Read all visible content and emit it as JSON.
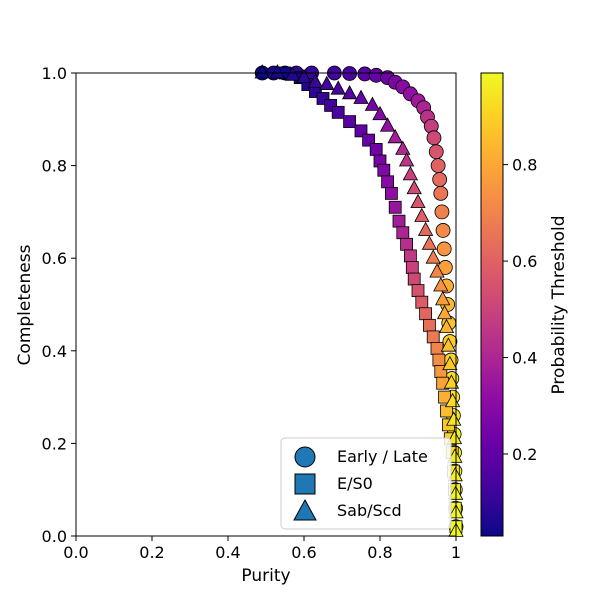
{
  "chart_data": {
    "type": "scatter",
    "title": "",
    "xlabel": "Purity",
    "ylabel": "Completeness",
    "xlim": [
      0,
      1
    ],
    "ylim": [
      0,
      1
    ],
    "xticks": [
      0.0,
      0.2,
      0.4,
      0.6,
      0.8,
      1.0
    ],
    "yticks": [
      0.0,
      0.2,
      0.4,
      0.6,
      0.8,
      1.0
    ],
    "xtick_labels": [
      "0.0",
      "0.2",
      "0.4",
      "0.6",
      "0.8",
      "1"
    ],
    "ytick_labels": [
      "0.0",
      "0.2",
      "0.4",
      "0.6",
      "0.8",
      "1.0"
    ],
    "grid": false,
    "legend_position": "lower-right",
    "colorbar": {
      "label": "Probability Threshold",
      "colormap": "plasma",
      "range": [
        0.03,
        0.99
      ],
      "ticks": [
        0.2,
        0.4,
        0.6,
        0.8
      ],
      "tick_labels": [
        "0.2",
        "0.4",
        "0.6",
        "0.8"
      ]
    },
    "series": [
      {
        "name": "Early / Late",
        "marker": "circle",
        "points": [
          {
            "purity": 0.49,
            "completeness": 1.0,
            "threshold": 0.03
          },
          {
            "purity": 0.52,
            "completeness": 1.0,
            "threshold": 0.05
          },
          {
            "purity": 0.55,
            "completeness": 1.0,
            "threshold": 0.07
          },
          {
            "purity": 0.58,
            "completeness": 1.0,
            "threshold": 0.09
          },
          {
            "purity": 0.62,
            "completeness": 1.0,
            "threshold": 0.11
          },
          {
            "purity": 0.68,
            "completeness": 1.0,
            "threshold": 0.13
          },
          {
            "purity": 0.72,
            "completeness": 0.999,
            "threshold": 0.15
          },
          {
            "purity": 0.76,
            "completeness": 0.998,
            "threshold": 0.18
          },
          {
            "purity": 0.79,
            "completeness": 0.995,
            "threshold": 0.21
          },
          {
            "purity": 0.82,
            "completeness": 0.99,
            "threshold": 0.24
          },
          {
            "purity": 0.84,
            "completeness": 0.98,
            "threshold": 0.27
          },
          {
            "purity": 0.86,
            "completeness": 0.97,
            "threshold": 0.3
          },
          {
            "purity": 0.88,
            "completeness": 0.955,
            "threshold": 0.33
          },
          {
            "purity": 0.9,
            "completeness": 0.94,
            "threshold": 0.36
          },
          {
            "purity": 0.915,
            "completeness": 0.925,
            "threshold": 0.4
          },
          {
            "purity": 0.925,
            "completeness": 0.905,
            "threshold": 0.44
          },
          {
            "purity": 0.935,
            "completeness": 0.885,
            "threshold": 0.48
          },
          {
            "purity": 0.942,
            "completeness": 0.86,
            "threshold": 0.52
          },
          {
            "purity": 0.948,
            "completeness": 0.83,
            "threshold": 0.56
          },
          {
            "purity": 0.953,
            "completeness": 0.8,
            "threshold": 0.6
          },
          {
            "purity": 0.957,
            "completeness": 0.77,
            "threshold": 0.63
          },
          {
            "purity": 0.96,
            "completeness": 0.74,
            "threshold": 0.66
          },
          {
            "purity": 0.963,
            "completeness": 0.7,
            "threshold": 0.69
          },
          {
            "purity": 0.966,
            "completeness": 0.66,
            "threshold": 0.72
          },
          {
            "purity": 0.969,
            "completeness": 0.62,
            "threshold": 0.75
          },
          {
            "purity": 0.972,
            "completeness": 0.58,
            "threshold": 0.78
          },
          {
            "purity": 0.975,
            "completeness": 0.54,
            "threshold": 0.81
          },
          {
            "purity": 0.978,
            "completeness": 0.5,
            "threshold": 0.84
          },
          {
            "purity": 0.981,
            "completeness": 0.46,
            "threshold": 0.87
          },
          {
            "purity": 0.984,
            "completeness": 0.42,
            "threshold": 0.89
          },
          {
            "purity": 0.987,
            "completeness": 0.38,
            "threshold": 0.91
          },
          {
            "purity": 0.989,
            "completeness": 0.34,
            "threshold": 0.93
          },
          {
            "purity": 0.991,
            "completeness": 0.3,
            "threshold": 0.94
          },
          {
            "purity": 0.993,
            "completeness": 0.26,
            "threshold": 0.95
          },
          {
            "purity": 0.995,
            "completeness": 0.22,
            "threshold": 0.96
          },
          {
            "purity": 0.996,
            "completeness": 0.18,
            "threshold": 0.97
          },
          {
            "purity": 0.997,
            "completeness": 0.14,
            "threshold": 0.975
          },
          {
            "purity": 0.998,
            "completeness": 0.1,
            "threshold": 0.98
          },
          {
            "purity": 0.999,
            "completeness": 0.06,
            "threshold": 0.985
          },
          {
            "purity": 1.0,
            "completeness": 0.02,
            "threshold": 0.99
          }
        ]
      },
      {
        "name": "E/S0",
        "marker": "square",
        "points": [
          {
            "purity": 0.55,
            "completeness": 1.0,
            "threshold": 0.03
          },
          {
            "purity": 0.59,
            "completeness": 0.99,
            "threshold": 0.05
          },
          {
            "purity": 0.61,
            "completeness": 0.975,
            "threshold": 0.07
          },
          {
            "purity": 0.63,
            "completeness": 0.96,
            "threshold": 0.09
          },
          {
            "purity": 0.65,
            "completeness": 0.945,
            "threshold": 0.11
          },
          {
            "purity": 0.67,
            "completeness": 0.93,
            "threshold": 0.13
          },
          {
            "purity": 0.69,
            "completeness": 0.915,
            "threshold": 0.15
          },
          {
            "purity": 0.72,
            "completeness": 0.895,
            "threshold": 0.18
          },
          {
            "purity": 0.75,
            "completeness": 0.875,
            "threshold": 0.2
          },
          {
            "purity": 0.77,
            "completeness": 0.855,
            "threshold": 0.22
          },
          {
            "purity": 0.79,
            "completeness": 0.835,
            "threshold": 0.24
          },
          {
            "purity": 0.8,
            "completeness": 0.81,
            "threshold": 0.26
          },
          {
            "purity": 0.81,
            "completeness": 0.79,
            "threshold": 0.28
          },
          {
            "purity": 0.82,
            "completeness": 0.765,
            "threshold": 0.3
          },
          {
            "purity": 0.83,
            "completeness": 0.74,
            "threshold": 0.32
          },
          {
            "purity": 0.84,
            "completeness": 0.71,
            "threshold": 0.34
          },
          {
            "purity": 0.85,
            "completeness": 0.68,
            "threshold": 0.37
          },
          {
            "purity": 0.86,
            "completeness": 0.655,
            "threshold": 0.4
          },
          {
            "purity": 0.87,
            "completeness": 0.63,
            "threshold": 0.43
          },
          {
            "purity": 0.88,
            "completeness": 0.605,
            "threshold": 0.46
          },
          {
            "purity": 0.885,
            "completeness": 0.58,
            "threshold": 0.49
          },
          {
            "purity": 0.89,
            "completeness": 0.555,
            "threshold": 0.52
          },
          {
            "purity": 0.9,
            "completeness": 0.53,
            "threshold": 0.55
          },
          {
            "purity": 0.91,
            "completeness": 0.505,
            "threshold": 0.58
          },
          {
            "purity": 0.92,
            "completeness": 0.48,
            "threshold": 0.61
          },
          {
            "purity": 0.93,
            "completeness": 0.455,
            "threshold": 0.64
          },
          {
            "purity": 0.94,
            "completeness": 0.43,
            "threshold": 0.67
          },
          {
            "purity": 0.95,
            "completeness": 0.405,
            "threshold": 0.7
          },
          {
            "purity": 0.955,
            "completeness": 0.38,
            "threshold": 0.73
          },
          {
            "purity": 0.96,
            "completeness": 0.355,
            "threshold": 0.76
          },
          {
            "purity": 0.965,
            "completeness": 0.33,
            "threshold": 0.79
          },
          {
            "purity": 0.97,
            "completeness": 0.3,
            "threshold": 0.82
          },
          {
            "purity": 0.975,
            "completeness": 0.27,
            "threshold": 0.85
          },
          {
            "purity": 0.98,
            "completeness": 0.24,
            "threshold": 0.88
          },
          {
            "purity": 0.985,
            "completeness": 0.21,
            "threshold": 0.9
          },
          {
            "purity": 0.99,
            "completeness": 0.18,
            "threshold": 0.92
          },
          {
            "purity": 0.993,
            "completeness": 0.14,
            "threshold": 0.94
          },
          {
            "purity": 0.996,
            "completeness": 0.1,
            "threshold": 0.96
          },
          {
            "purity": 0.998,
            "completeness": 0.06,
            "threshold": 0.98
          },
          {
            "purity": 1.0,
            "completeness": 0.02,
            "threshold": 0.99
          }
        ]
      },
      {
        "name": "Sab/Scd",
        "marker": "triangle",
        "points": [
          {
            "purity": 0.49,
            "completeness": 1.0,
            "threshold": 0.03
          },
          {
            "purity": 0.53,
            "completeness": 1.0,
            "threshold": 0.05
          },
          {
            "purity": 0.57,
            "completeness": 0.995,
            "threshold": 0.07
          },
          {
            "purity": 0.6,
            "completeness": 0.99,
            "threshold": 0.09
          },
          {
            "purity": 0.63,
            "completeness": 0.98,
            "threshold": 0.11
          },
          {
            "purity": 0.66,
            "completeness": 0.975,
            "threshold": 0.13
          },
          {
            "purity": 0.69,
            "completeness": 0.965,
            "threshold": 0.15
          },
          {
            "purity": 0.72,
            "completeness": 0.955,
            "threshold": 0.18
          },
          {
            "purity": 0.75,
            "completeness": 0.945,
            "threshold": 0.21
          },
          {
            "purity": 0.78,
            "completeness": 0.93,
            "threshold": 0.25
          },
          {
            "purity": 0.8,
            "completeness": 0.91,
            "threshold": 0.29
          },
          {
            "purity": 0.82,
            "completeness": 0.885,
            "threshold": 0.33
          },
          {
            "purity": 0.84,
            "completeness": 0.86,
            "threshold": 0.37
          },
          {
            "purity": 0.86,
            "completeness": 0.835,
            "threshold": 0.41
          },
          {
            "purity": 0.87,
            "completeness": 0.81,
            "threshold": 0.45
          },
          {
            "purity": 0.88,
            "completeness": 0.78,
            "threshold": 0.49
          },
          {
            "purity": 0.89,
            "completeness": 0.75,
            "threshold": 0.53
          },
          {
            "purity": 0.9,
            "completeness": 0.72,
            "threshold": 0.56
          },
          {
            "purity": 0.91,
            "completeness": 0.69,
            "threshold": 0.59
          },
          {
            "purity": 0.92,
            "completeness": 0.66,
            "threshold": 0.62
          },
          {
            "purity": 0.93,
            "completeness": 0.63,
            "threshold": 0.65
          },
          {
            "purity": 0.94,
            "completeness": 0.6,
            "threshold": 0.68
          },
          {
            "purity": 0.95,
            "completeness": 0.57,
            "threshold": 0.71
          },
          {
            "purity": 0.96,
            "completeness": 0.54,
            "threshold": 0.74
          },
          {
            "purity": 0.965,
            "completeness": 0.51,
            "threshold": 0.77
          },
          {
            "purity": 0.97,
            "completeness": 0.48,
            "threshold": 0.8
          },
          {
            "purity": 0.975,
            "completeness": 0.45,
            "threshold": 0.83
          },
          {
            "purity": 0.98,
            "completeness": 0.41,
            "threshold": 0.86
          },
          {
            "purity": 0.984,
            "completeness": 0.37,
            "threshold": 0.88
          },
          {
            "purity": 0.988,
            "completeness": 0.33,
            "threshold": 0.9
          },
          {
            "purity": 0.991,
            "completeness": 0.29,
            "threshold": 0.92
          },
          {
            "purity": 0.994,
            "completeness": 0.25,
            "threshold": 0.94
          },
          {
            "purity": 0.996,
            "completeness": 0.21,
            "threshold": 0.95
          },
          {
            "purity": 0.997,
            "completeness": 0.17,
            "threshold": 0.96
          },
          {
            "purity": 0.998,
            "completeness": 0.13,
            "threshold": 0.97
          },
          {
            "purity": 0.999,
            "completeness": 0.09,
            "threshold": 0.98
          },
          {
            "purity": 1.0,
            "completeness": 0.05,
            "threshold": 0.985
          },
          {
            "purity": 1.0,
            "completeness": 0.01,
            "threshold": 0.99
          }
        ]
      }
    ]
  }
}
